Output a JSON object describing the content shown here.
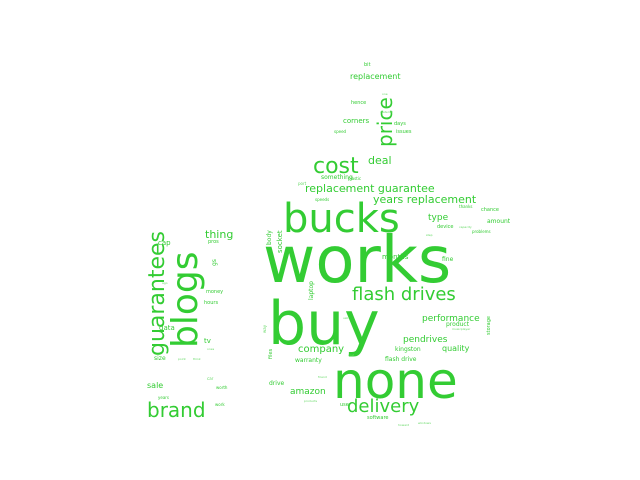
{
  "colors": {
    "background": "#ffffff",
    "word": "#33cc33",
    "word_light": "#66d966"
  },
  "words": [
    {
      "t": "works"
    },
    {
      "t": "buy"
    },
    {
      "t": "none"
    },
    {
      "t": "bucks"
    },
    {
      "t": "blogs"
    },
    {
      "t": "cost"
    },
    {
      "t": "guarantees"
    },
    {
      "t": "brand"
    },
    {
      "t": "flash drives"
    },
    {
      "t": "delivery"
    },
    {
      "t": "price"
    },
    {
      "t": "replacement guarantee"
    },
    {
      "t": "years replacement"
    },
    {
      "t": "deal"
    },
    {
      "t": "thing"
    },
    {
      "t": "company"
    },
    {
      "t": "performance"
    },
    {
      "t": "amazon"
    },
    {
      "t": "sale"
    },
    {
      "t": "pendrives"
    },
    {
      "t": "quality"
    },
    {
      "t": "type"
    },
    {
      "t": "months"
    },
    {
      "t": "cap"
    },
    {
      "t": "data"
    },
    {
      "t": "tv"
    },
    {
      "t": "replacement"
    },
    {
      "t": "corners"
    },
    {
      "t": "product"
    },
    {
      "t": "warranty"
    },
    {
      "t": "drive"
    },
    {
      "t": "something"
    },
    {
      "t": "socket"
    },
    {
      "t": "size"
    },
    {
      "t": "kingston"
    },
    {
      "t": "amount"
    },
    {
      "t": "fine"
    },
    {
      "t": "device"
    },
    {
      "t": "laptop"
    },
    {
      "t": "body"
    },
    {
      "t": "storage"
    },
    {
      "t": "flash drive"
    },
    {
      "t": "software"
    },
    {
      "t": "gs"
    },
    {
      "t": "pros"
    },
    {
      "t": "money"
    },
    {
      "t": "hours"
    },
    {
      "t": "files"
    },
    {
      "t": "hence"
    },
    {
      "t": "days"
    },
    {
      "t": "issues"
    },
    {
      "t": "bit"
    },
    {
      "t": "chance"
    },
    {
      "t": "thanks"
    },
    {
      "t": "problems"
    },
    {
      "t": "speeds"
    },
    {
      "t": "plastic"
    },
    {
      "t": "years"
    },
    {
      "t": "work"
    },
    {
      "t": "worth"
    },
    {
      "t": "use"
    },
    {
      "t": "speed"
    },
    {
      "t": "material"
    },
    {
      "t": "port"
    },
    {
      "t": "way"
    },
    {
      "t": "car"
    },
    {
      "t": "friend"
    },
    {
      "t": "products"
    },
    {
      "t": "windows"
    },
    {
      "t": "howard"
    },
    {
      "t": "musicplayer"
    },
    {
      "t": "capacity"
    },
    {
      "t": "point"
    },
    {
      "t": "case"
    },
    {
      "t": "usb"
    },
    {
      "t": "one"
    },
    {
      "t": "ones"
    },
    {
      "t": "think"
    },
    {
      "t": "cost"
    },
    {
      "t": "ago"
    },
    {
      "t": "step"
    }
  ]
}
